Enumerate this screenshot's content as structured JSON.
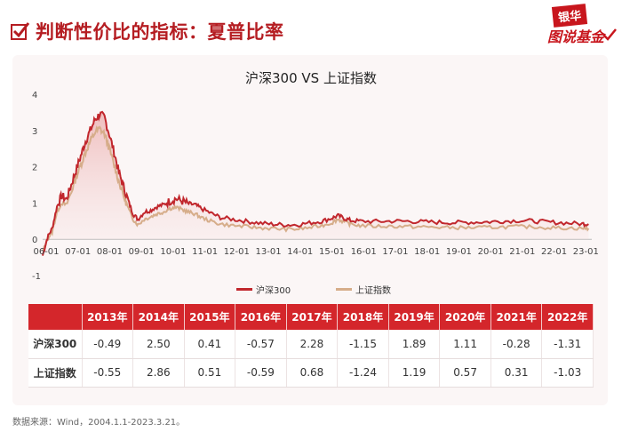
{
  "header": {
    "title": "判断性价比的指标：夏普比率",
    "brand_top": "银华",
    "brand_bottom": "图说基金"
  },
  "chart_data": {
    "type": "line",
    "title": "沪深300 VS 上证指数",
    "x_tick_labels": [
      "06-01",
      "07-01",
      "08-01",
      "09-01",
      "10-01",
      "11-01",
      "12-01",
      "13-01",
      "14-01",
      "15-01",
      "16-01",
      "17-01",
      "18-01",
      "19-01",
      "20-01",
      "21-01",
      "22-01",
      "23-01"
    ],
    "y_tick_labels": [
      "4",
      "3",
      "2",
      "1",
      "0",
      "-1"
    ],
    "ylim": [
      -1,
      4
    ],
    "x": [
      2006.0,
      2006.15,
      2006.3,
      2006.45,
      2006.6,
      2006.75,
      2006.9,
      2007.05,
      2007.2,
      2007.35,
      2007.5,
      2007.65,
      2007.8,
      2007.95,
      2008.1,
      2008.25,
      2008.4,
      2008.55,
      2008.7,
      2008.85,
      2009.0,
      2009.2,
      2009.4,
      2009.6,
      2009.8,
      2010.0,
      2010.2,
      2010.4,
      2010.6,
      2010.8,
      2011.0,
      2011.3,
      2011.6,
      2012.0,
      2012.4,
      2012.8,
      2013.2,
      2013.6,
      2014.0,
      2014.4,
      2014.8,
      2015.1,
      2015.3,
      2015.5,
      2015.7,
      2016.0,
      2016.5,
      2017.0,
      2017.5,
      2018.0,
      2018.5,
      2019.0,
      2019.5,
      2020.0,
      2020.5,
      2021.0,
      2021.5,
      2022.0,
      2022.5,
      2023.0,
      2023.2
    ],
    "series": [
      {
        "name": "沪深300",
        "color": "#c1272d",
        "values": [
          -0.45,
          0.05,
          0.3,
          0.9,
          1.2,
          1.1,
          1.5,
          1.9,
          2.3,
          2.7,
          3.0,
          3.3,
          3.45,
          3.35,
          2.9,
          2.4,
          1.85,
          1.45,
          1.05,
          0.7,
          0.55,
          0.75,
          0.8,
          0.9,
          0.95,
          1.05,
          1.12,
          1.05,
          0.98,
          0.95,
          0.85,
          0.72,
          0.6,
          0.55,
          0.5,
          0.45,
          0.42,
          0.4,
          0.4,
          0.45,
          0.5,
          0.58,
          0.65,
          0.58,
          0.52,
          0.5,
          0.49,
          0.5,
          0.5,
          0.48,
          0.47,
          0.46,
          0.47,
          0.48,
          0.5,
          0.52,
          0.5,
          0.47,
          0.45,
          0.43,
          0.42
        ]
      },
      {
        "name": "上证指数",
        "color": "#d6ad8a",
        "values": [
          -0.35,
          0.0,
          0.2,
          0.75,
          1.0,
          0.95,
          1.3,
          1.7,
          2.05,
          2.4,
          2.7,
          2.95,
          3.05,
          2.9,
          2.5,
          2.05,
          1.6,
          1.2,
          0.85,
          0.55,
          0.4,
          0.55,
          0.62,
          0.7,
          0.75,
          0.85,
          0.88,
          0.82,
          0.75,
          0.7,
          0.6,
          0.5,
          0.42,
          0.38,
          0.35,
          0.32,
          0.3,
          0.28,
          0.28,
          0.32,
          0.38,
          0.45,
          0.55,
          0.48,
          0.42,
          0.38,
          0.36,
          0.36,
          0.35,
          0.34,
          0.33,
          0.32,
          0.32,
          0.33,
          0.34,
          0.35,
          0.34,
          0.32,
          0.31,
          0.3,
          0.3
        ]
      }
    ]
  },
  "legend": [
    {
      "label": "沪深300",
      "color": "#c1272d"
    },
    {
      "label": "上证指数",
      "color": "#d6ad8a"
    }
  ],
  "table": {
    "headers": [
      "",
      "2013年",
      "2014年",
      "2015年",
      "2016年",
      "2017年",
      "2018年",
      "2019年",
      "2020年",
      "2021年",
      "2022年"
    ],
    "rows": [
      {
        "name": "沪深300",
        "values": [
          "-0.49",
          "2.50",
          "0.41",
          "-0.57",
          "2.28",
          "-1.15",
          "1.89",
          "1.11",
          "-0.28",
          "-1.31"
        ]
      },
      {
        "name": "上证指数",
        "values": [
          "-0.55",
          "2.86",
          "0.51",
          "-0.59",
          "0.68",
          "-1.24",
          "1.19",
          "0.57",
          "0.31",
          "-1.03"
        ]
      }
    ]
  },
  "footnote": "数据来源：Wind，2004.1.1-2023.3.21。"
}
